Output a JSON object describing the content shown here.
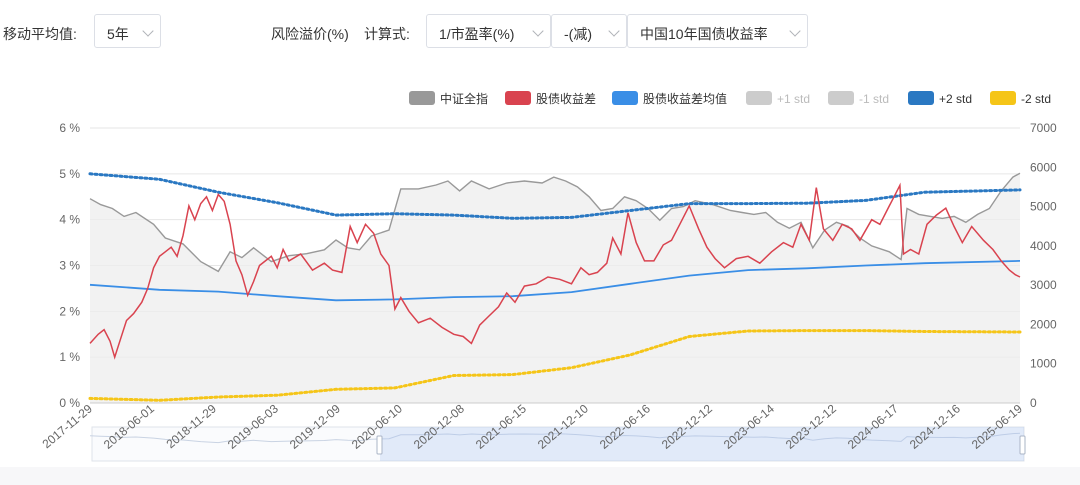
{
  "controls": {
    "ma_label": "移动平均值:",
    "ma_value": "5年",
    "premium_label": "风险溢价(%)",
    "calc_label": "计算式:",
    "formula_a": "1/市盈率(%)",
    "operator": "-(减)",
    "formula_b": "中国10年国债收益率"
  },
  "colors": {
    "index": "#999999",
    "spread": "#d9434f",
    "mean": "#3a8ee6",
    "plus1": "#cccccc",
    "minus1": "#cccccc",
    "plus2": "#2a78c2",
    "minus2": "#f5c518",
    "area": "#ededed"
  },
  "chart_data": {
    "type": "line",
    "legend": [
      {
        "name": "中证全指",
        "color": "#999999",
        "active": true
      },
      {
        "name": "股债收益差",
        "color": "#d9434f",
        "active": true
      },
      {
        "name": "股债收益差均值",
        "color": "#3a8ee6",
        "active": true
      },
      {
        "name": "+1 std",
        "color": "#cccccc",
        "active": false
      },
      {
        "name": "-1 std",
        "color": "#cccccc",
        "active": false
      },
      {
        "name": "+2 std",
        "color": "#2a78c2",
        "active": true
      },
      {
        "name": "-2 std",
        "color": "#f5c518",
        "active": true
      }
    ],
    "legend_position": "top-right",
    "x_tick_labels": [
      "2017-11-29",
      "2018-06-01",
      "2018-11-29",
      "2019-06-03",
      "2019-12-09",
      "2020-06-10",
      "2020-12-08",
      "2021-06-15",
      "2021-12-10",
      "2022-06-16",
      "2022-12-12",
      "2023-06-14",
      "2023-12-12",
      "2024-06-17",
      "2024-12-16",
      "2025-06-19"
    ],
    "y_left": {
      "min": 0,
      "max": 6,
      "ticks": [
        "0 %",
        "1 %",
        "2 %",
        "3 %",
        "4 %",
        "5 %",
        "6 %"
      ]
    },
    "y_right": {
      "min": 0,
      "max": 7000,
      "ticks": [
        "0",
        "1000",
        "2000",
        "3000",
        "4000",
        "5000",
        "6000",
        "7000"
      ]
    },
    "grid": true,
    "x_scale_years": {
      "start": 2017.91,
      "end": 2025.81
    },
    "series": [
      {
        "name": "中证全指",
        "axis": "right",
        "style": "line+area",
        "values": [
          [
            2017.91,
            5200
          ],
          [
            2018.0,
            5050
          ],
          [
            2018.1,
            4950
          ],
          [
            2018.2,
            4750
          ],
          [
            2018.3,
            4850
          ],
          [
            2018.45,
            4550
          ],
          [
            2018.55,
            4200
          ],
          [
            2018.7,
            4050
          ],
          [
            2018.85,
            3600
          ],
          [
            2019.0,
            3350
          ],
          [
            2019.1,
            3850
          ],
          [
            2019.2,
            3700
          ],
          [
            2019.3,
            3950
          ],
          [
            2019.45,
            3600
          ],
          [
            2019.6,
            3750
          ],
          [
            2019.75,
            3800
          ],
          [
            2019.9,
            3900
          ],
          [
            2020.0,
            4150
          ],
          [
            2020.1,
            3950
          ],
          [
            2020.2,
            3900
          ],
          [
            2020.3,
            4250
          ],
          [
            2020.45,
            4400
          ],
          [
            2020.55,
            5450
          ],
          [
            2020.7,
            5450
          ],
          [
            2020.85,
            5550
          ],
          [
            2020.95,
            5650
          ],
          [
            2021.05,
            5400
          ],
          [
            2021.15,
            5650
          ],
          [
            2021.3,
            5450
          ],
          [
            2021.45,
            5600
          ],
          [
            2021.6,
            5650
          ],
          [
            2021.75,
            5600
          ],
          [
            2021.85,
            5750
          ],
          [
            2021.95,
            5650
          ],
          [
            2022.05,
            5500
          ],
          [
            2022.15,
            5250
          ],
          [
            2022.25,
            4900
          ],
          [
            2022.35,
            4950
          ],
          [
            2022.45,
            5250
          ],
          [
            2022.55,
            5150
          ],
          [
            2022.65,
            4950
          ],
          [
            2022.75,
            4650
          ],
          [
            2022.85,
            4950
          ],
          [
            2022.95,
            5000
          ],
          [
            2023.05,
            5150
          ],
          [
            2023.2,
            5050
          ],
          [
            2023.35,
            4900
          ],
          [
            2023.45,
            4850
          ],
          [
            2023.55,
            4800
          ],
          [
            2023.65,
            4850
          ],
          [
            2023.75,
            4600
          ],
          [
            2023.85,
            4450
          ],
          [
            2023.95,
            4600
          ],
          [
            2024.05,
            3950
          ],
          [
            2024.15,
            4400
          ],
          [
            2024.25,
            4600
          ],
          [
            2024.35,
            4500
          ],
          [
            2024.45,
            4200
          ],
          [
            2024.55,
            4000
          ],
          [
            2024.7,
            3850
          ],
          [
            2024.8,
            3650
          ],
          [
            2024.85,
            4950
          ],
          [
            2024.95,
            4800
          ],
          [
            2025.05,
            4750
          ],
          [
            2025.15,
            4700
          ],
          [
            2025.25,
            4750
          ],
          [
            2025.35,
            4600
          ],
          [
            2025.45,
            4800
          ],
          [
            2025.55,
            4950
          ],
          [
            2025.65,
            5400
          ],
          [
            2025.75,
            5750
          ],
          [
            2025.81,
            5850
          ]
        ]
      },
      {
        "name": "股债收益差",
        "axis": "left",
        "style": "line",
        "values": [
          [
            2017.91,
            1.3
          ],
          [
            2017.98,
            1.5
          ],
          [
            2018.03,
            1.6
          ],
          [
            2018.08,
            1.35
          ],
          [
            2018.12,
            1.0
          ],
          [
            2018.17,
            1.4
          ],
          [
            2018.22,
            1.8
          ],
          [
            2018.28,
            1.95
          ],
          [
            2018.35,
            2.2
          ],
          [
            2018.4,
            2.5
          ],
          [
            2018.45,
            2.95
          ],
          [
            2018.5,
            3.2
          ],
          [
            2018.55,
            3.3
          ],
          [
            2018.6,
            3.4
          ],
          [
            2018.65,
            3.2
          ],
          [
            2018.7,
            3.65
          ],
          [
            2018.75,
            4.3
          ],
          [
            2018.8,
            4.0
          ],
          [
            2018.85,
            4.35
          ],
          [
            2018.9,
            4.5
          ],
          [
            2018.95,
            4.2
          ],
          [
            2019.0,
            4.55
          ],
          [
            2019.05,
            4.4
          ],
          [
            2019.1,
            3.9
          ],
          [
            2019.15,
            3.1
          ],
          [
            2019.2,
            2.8
          ],
          [
            2019.25,
            2.35
          ],
          [
            2019.3,
            2.65
          ],
          [
            2019.35,
            3.0
          ],
          [
            2019.4,
            3.1
          ],
          [
            2019.45,
            3.2
          ],
          [
            2019.5,
            2.95
          ],
          [
            2019.55,
            3.35
          ],
          [
            2019.6,
            3.1
          ],
          [
            2019.7,
            3.25
          ],
          [
            2019.8,
            2.9
          ],
          [
            2019.9,
            3.05
          ],
          [
            2019.97,
            2.9
          ],
          [
            2020.05,
            2.85
          ],
          [
            2020.12,
            3.85
          ],
          [
            2020.18,
            3.5
          ],
          [
            2020.25,
            3.9
          ],
          [
            2020.32,
            3.7
          ],
          [
            2020.38,
            3.25
          ],
          [
            2020.45,
            3.0
          ],
          [
            2020.5,
            2.05
          ],
          [
            2020.55,
            2.3
          ],
          [
            2020.62,
            2.0
          ],
          [
            2020.7,
            1.75
          ],
          [
            2020.8,
            1.85
          ],
          [
            2020.9,
            1.65
          ],
          [
            2021.0,
            1.5
          ],
          [
            2021.08,
            1.45
          ],
          [
            2021.15,
            1.3
          ],
          [
            2021.22,
            1.7
          ],
          [
            2021.3,
            1.9
          ],
          [
            2021.38,
            2.1
          ],
          [
            2021.45,
            2.4
          ],
          [
            2021.52,
            2.2
          ],
          [
            2021.6,
            2.55
          ],
          [
            2021.7,
            2.6
          ],
          [
            2021.8,
            2.75
          ],
          [
            2021.9,
            2.7
          ],
          [
            2022.0,
            2.6
          ],
          [
            2022.08,
            2.95
          ],
          [
            2022.15,
            2.8
          ],
          [
            2022.22,
            2.85
          ],
          [
            2022.3,
            3.05
          ],
          [
            2022.35,
            3.6
          ],
          [
            2022.42,
            3.25
          ],
          [
            2022.48,
            4.15
          ],
          [
            2022.55,
            3.5
          ],
          [
            2022.62,
            3.1
          ],
          [
            2022.7,
            3.1
          ],
          [
            2022.78,
            3.45
          ],
          [
            2022.85,
            3.55
          ],
          [
            2022.92,
            3.9
          ],
          [
            2023.0,
            4.3
          ],
          [
            2023.08,
            3.8
          ],
          [
            2023.15,
            3.4
          ],
          [
            2023.22,
            3.15
          ],
          [
            2023.3,
            2.95
          ],
          [
            2023.4,
            3.15
          ],
          [
            2023.5,
            3.2
          ],
          [
            2023.6,
            3.05
          ],
          [
            2023.7,
            3.3
          ],
          [
            2023.8,
            3.5
          ],
          [
            2023.88,
            3.4
          ],
          [
            2023.95,
            3.9
          ],
          [
            2024.02,
            3.55
          ],
          [
            2024.08,
            4.7
          ],
          [
            2024.14,
            3.8
          ],
          [
            2024.22,
            3.55
          ],
          [
            2024.3,
            3.9
          ],
          [
            2024.38,
            3.8
          ],
          [
            2024.45,
            3.55
          ],
          [
            2024.55,
            4.0
          ],
          [
            2024.62,
            3.9
          ],
          [
            2024.7,
            4.3
          ],
          [
            2024.76,
            4.6
          ],
          [
            2024.79,
            4.75
          ],
          [
            2024.82,
            3.25
          ],
          [
            2024.88,
            3.35
          ],
          [
            2024.95,
            3.25
          ],
          [
            2025.02,
            3.9
          ],
          [
            2025.1,
            4.1
          ],
          [
            2025.18,
            4.25
          ],
          [
            2025.25,
            3.85
          ],
          [
            2025.32,
            3.5
          ],
          [
            2025.4,
            3.85
          ],
          [
            2025.5,
            3.55
          ],
          [
            2025.58,
            3.35
          ],
          [
            2025.65,
            3.1
          ],
          [
            2025.72,
            2.9
          ],
          [
            2025.77,
            2.8
          ],
          [
            2025.81,
            2.75
          ]
        ]
      },
      {
        "name": "股债收益差均值",
        "axis": "left",
        "style": "line",
        "values": [
          [
            2017.91,
            2.58
          ],
          [
            2018.5,
            2.47
          ],
          [
            2019.0,
            2.43
          ],
          [
            2019.5,
            2.33
          ],
          [
            2020.0,
            2.24
          ],
          [
            2020.5,
            2.26
          ],
          [
            2021.0,
            2.31
          ],
          [
            2021.5,
            2.33
          ],
          [
            2022.0,
            2.42
          ],
          [
            2022.5,
            2.6
          ],
          [
            2023.0,
            2.78
          ],
          [
            2023.5,
            2.9
          ],
          [
            2024.0,
            2.94
          ],
          [
            2024.5,
            3.0
          ],
          [
            2025.0,
            3.05
          ],
          [
            2025.81,
            3.1
          ]
        ]
      },
      {
        "name": "+2 std",
        "axis": "left",
        "style": "dotted",
        "values": [
          [
            2017.91,
            5.0
          ],
          [
            2018.5,
            4.88
          ],
          [
            2019.0,
            4.6
          ],
          [
            2019.5,
            4.37
          ],
          [
            2020.0,
            4.1
          ],
          [
            2020.5,
            4.13
          ],
          [
            2021.0,
            4.1
          ],
          [
            2021.5,
            4.03
          ],
          [
            2022.0,
            4.05
          ],
          [
            2022.5,
            4.2
          ],
          [
            2023.0,
            4.35
          ],
          [
            2023.5,
            4.35
          ],
          [
            2024.0,
            4.36
          ],
          [
            2024.5,
            4.42
          ],
          [
            2025.0,
            4.6
          ],
          [
            2025.81,
            4.65
          ]
        ]
      },
      {
        "name": "-2 std",
        "axis": "left",
        "style": "dotted",
        "values": [
          [
            2017.91,
            0.1
          ],
          [
            2018.5,
            0.06
          ],
          [
            2019.0,
            0.13
          ],
          [
            2019.5,
            0.17
          ],
          [
            2020.0,
            0.3
          ],
          [
            2020.5,
            0.33
          ],
          [
            2021.0,
            0.6
          ],
          [
            2021.5,
            0.62
          ],
          [
            2022.0,
            0.77
          ],
          [
            2022.5,
            1.05
          ],
          [
            2023.0,
            1.45
          ],
          [
            2023.5,
            1.57
          ],
          [
            2024.0,
            1.58
          ],
          [
            2024.5,
            1.58
          ],
          [
            2025.0,
            1.56
          ],
          [
            2025.81,
            1.55
          ]
        ]
      }
    ]
  }
}
